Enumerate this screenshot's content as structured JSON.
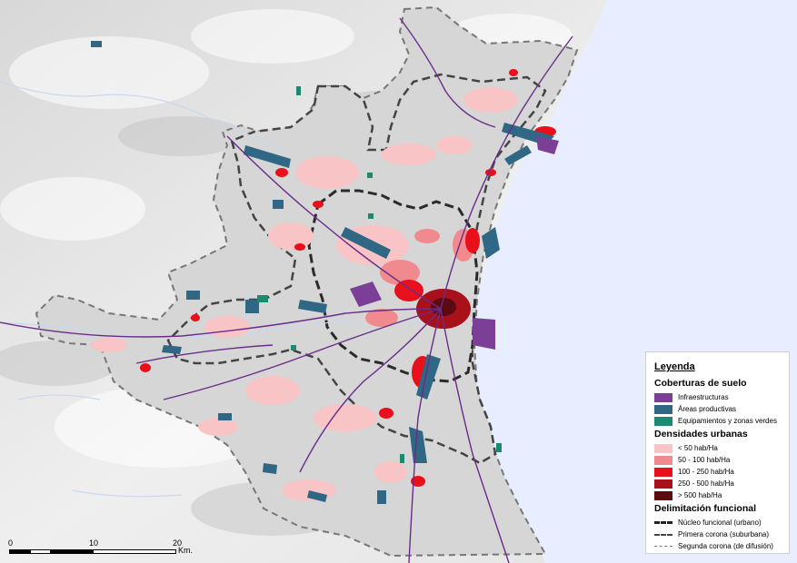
{
  "legend": {
    "title": "Leyenda",
    "land_cover": {
      "title": "Coberturas de suelo",
      "items": [
        {
          "label": "Infraestructuras",
          "color": "#7b3f98"
        },
        {
          "label": "Áreas productivas",
          "color": "#2f6784"
        },
        {
          "label": "Equipamientos y zonas verdes",
          "color": "#1c8a6e"
        }
      ]
    },
    "densities": {
      "title": "Densidades urbanas",
      "items": [
        {
          "label": "< 50 hab/Ha",
          "color": "#f8c4c6"
        },
        {
          "label": "50 - 100 hab/Ha",
          "color": "#f08a8e"
        },
        {
          "label": "100 - 250 hab/Ha",
          "color": "#e8101a"
        },
        {
          "label": "250 - 500 hab/Ha",
          "color": "#a8101a"
        },
        {
          "label": "> 500 hab/Ha",
          "color": "#5a0a10"
        }
      ]
    },
    "functional": {
      "title": "Delimitación funcional",
      "items": [
        {
          "label": "Núcleo funcional (urbano)"
        },
        {
          "label": "Primera corona (suburbana)"
        },
        {
          "label": "Segunda corona (de difusión)"
        }
      ]
    }
  },
  "scale": {
    "labels": [
      "0",
      "10",
      "20"
    ],
    "unit": "Km."
  },
  "colors": {
    "sea": "#e8eeff",
    "land": "#e6e6e6",
    "corona": "#d6d6d6",
    "road": "#6a2c8a",
    "wetland": "#dcebff"
  }
}
